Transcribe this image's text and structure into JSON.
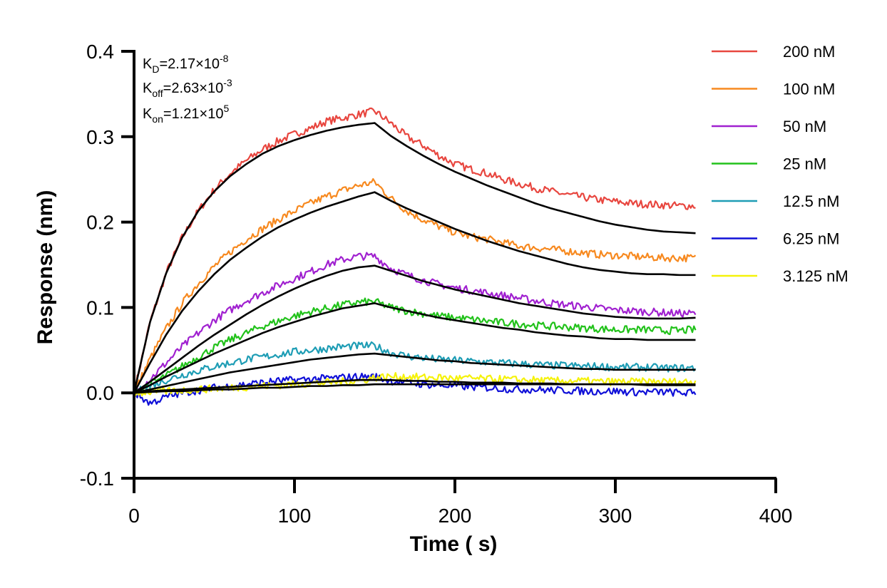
{
  "chart_data": {
    "type": "line",
    "xlabel": "Time ( s)",
    "ylabel": "Response (nm)",
    "xlim": [
      0,
      400
    ],
    "ylim": [
      -0.1,
      0.4
    ],
    "xticks": [
      0,
      100,
      200,
      300,
      400
    ],
    "yticks": [
      -0.1,
      0.0,
      0.1,
      0.2,
      0.3,
      0.4
    ],
    "xtick_labels": [
      "0",
      "100",
      "200",
      "300",
      "400"
    ],
    "ytick_labels": [
      "-0.1",
      "0.0",
      "0.1",
      "0.2",
      "0.3",
      "0.4"
    ],
    "grid": false,
    "legend_position": "top-right",
    "annotations": {
      "kd": {
        "base": "K",
        "sub": "D",
        "text": "=2.17×10",
        "sup": "-8"
      },
      "koff": {
        "base": "K",
        "sub": "off",
        "text": "=2.63×10",
        "sup": "-3"
      },
      "kon": {
        "base": "K",
        "sub": "on",
        "text": "=1.21×10",
        "sup": "5"
      }
    },
    "association_end": 150,
    "x": [
      0,
      10,
      20,
      30,
      40,
      50,
      60,
      70,
      80,
      90,
      100,
      110,
      120,
      130,
      140,
      150,
      160,
      170,
      180,
      190,
      200,
      210,
      220,
      230,
      240,
      250,
      260,
      270,
      280,
      290,
      300,
      310,
      320,
      330,
      340,
      350
    ],
    "series": [
      {
        "name": "200 nM",
        "color": "#E8463F",
        "values": [
          0.0,
          0.083,
          0.14,
          0.182,
          0.213,
          0.238,
          0.257,
          0.272,
          0.285,
          0.295,
          0.303,
          0.31,
          0.318,
          0.322,
          0.326,
          0.33,
          0.316,
          0.3,
          0.29,
          0.278,
          0.268,
          0.262,
          0.257,
          0.25,
          0.245,
          0.24,
          0.236,
          0.232,
          0.229,
          0.226,
          0.224,
          0.222,
          0.221,
          0.22,
          0.219,
          0.219
        ],
        "fit": [
          0.0,
          0.083,
          0.14,
          0.182,
          0.213,
          0.236,
          0.254,
          0.268,
          0.28,
          0.289,
          0.296,
          0.302,
          0.307,
          0.311,
          0.314,
          0.316,
          0.301,
          0.289,
          0.278,
          0.268,
          0.259,
          0.251,
          0.243,
          0.236,
          0.229,
          0.222,
          0.216,
          0.211,
          0.206,
          0.201,
          0.197,
          0.194,
          0.191,
          0.189,
          0.188,
          0.187
        ]
      },
      {
        "name": "100 nM",
        "color": "#F7891F",
        "values": [
          0.0,
          0.04,
          0.075,
          0.105,
          0.128,
          0.148,
          0.165,
          0.18,
          0.192,
          0.203,
          0.213,
          0.222,
          0.23,
          0.237,
          0.243,
          0.247,
          0.228,
          0.213,
          0.203,
          0.195,
          0.188,
          0.183,
          0.18,
          0.176,
          0.172,
          0.17,
          0.168,
          0.166,
          0.164,
          0.162,
          0.161,
          0.16,
          0.159,
          0.158,
          0.158,
          0.158
        ],
        "fit": [
          0.0,
          0.035,
          0.068,
          0.096,
          0.119,
          0.139,
          0.156,
          0.17,
          0.183,
          0.194,
          0.203,
          0.211,
          0.218,
          0.224,
          0.23,
          0.235,
          0.225,
          0.216,
          0.208,
          0.2,
          0.192,
          0.185,
          0.178,
          0.172,
          0.166,
          0.161,
          0.156,
          0.151,
          0.147,
          0.144,
          0.142,
          0.14,
          0.139,
          0.139,
          0.138,
          0.138
        ]
      },
      {
        "name": "50 nM",
        "color": "#A020D0",
        "values": [
          0.0,
          0.016,
          0.035,
          0.054,
          0.07,
          0.085,
          0.097,
          0.108,
          0.117,
          0.126,
          0.134,
          0.142,
          0.15,
          0.156,
          0.16,
          0.16,
          0.146,
          0.138,
          0.132,
          0.127,
          0.123,
          0.12,
          0.117,
          0.114,
          0.111,
          0.108,
          0.105,
          0.103,
          0.101,
          0.099,
          0.097,
          0.096,
          0.095,
          0.094,
          0.093,
          0.093
        ],
        "fit": [
          0.0,
          0.013,
          0.027,
          0.041,
          0.055,
          0.068,
          0.08,
          0.092,
          0.103,
          0.113,
          0.122,
          0.13,
          0.137,
          0.143,
          0.147,
          0.149,
          0.143,
          0.137,
          0.131,
          0.126,
          0.121,
          0.117,
          0.113,
          0.109,
          0.105,
          0.102,
          0.099,
          0.096,
          0.093,
          0.091,
          0.089,
          0.088,
          0.087,
          0.087,
          0.087,
          0.088
        ]
      },
      {
        "name": "25 nM",
        "color": "#22C21B",
        "values": [
          0.0,
          0.01,
          0.02,
          0.031,
          0.042,
          0.053,
          0.062,
          0.07,
          0.078,
          0.084,
          0.09,
          0.095,
          0.099,
          0.103,
          0.106,
          0.107,
          0.1,
          0.096,
          0.093,
          0.09,
          0.088,
          0.086,
          0.084,
          0.082,
          0.081,
          0.079,
          0.078,
          0.077,
          0.076,
          0.075,
          0.074,
          0.074,
          0.074,
          0.073,
          0.073,
          0.074
        ],
        "fit": [
          0.0,
          0.009,
          0.019,
          0.028,
          0.037,
          0.046,
          0.054,
          0.062,
          0.07,
          0.077,
          0.083,
          0.089,
          0.094,
          0.099,
          0.102,
          0.105,
          0.1,
          0.096,
          0.092,
          0.088,
          0.085,
          0.082,
          0.079,
          0.076,
          0.074,
          0.071,
          0.069,
          0.067,
          0.066,
          0.064,
          0.063,
          0.063,
          0.062,
          0.062,
          0.062,
          0.062
        ]
      },
      {
        "name": "12.5 nM",
        "color": "#1E9DB5",
        "values": [
          0.0,
          0.008,
          0.015,
          0.021,
          0.026,
          0.031,
          0.035,
          0.039,
          0.042,
          0.045,
          0.048,
          0.05,
          0.052,
          0.054,
          0.055,
          0.055,
          0.047,
          0.043,
          0.041,
          0.039,
          0.038,
          0.037,
          0.036,
          0.035,
          0.034,
          0.033,
          0.032,
          0.032,
          0.031,
          0.031,
          0.03,
          0.03,
          0.03,
          0.029,
          0.029,
          0.029
        ],
        "fit": [
          0.0,
          0.004,
          0.008,
          0.012,
          0.016,
          0.02,
          0.024,
          0.027,
          0.03,
          0.033,
          0.036,
          0.039,
          0.041,
          0.043,
          0.045,
          0.046,
          0.044,
          0.042,
          0.04,
          0.038,
          0.037,
          0.035,
          0.034,
          0.033,
          0.032,
          0.031,
          0.03,
          0.029,
          0.028,
          0.028,
          0.027,
          0.027,
          0.027,
          0.027,
          0.027,
          0.027
        ]
      },
      {
        "name": "6.25 nM",
        "color": "#1010D8",
        "values": [
          0.0,
          -0.012,
          -0.005,
          0.0,
          0.003,
          0.006,
          0.008,
          0.01,
          0.012,
          0.014,
          0.015,
          0.016,
          0.017,
          0.018,
          0.019,
          0.019,
          0.014,
          0.012,
          0.01,
          0.009,
          0.008,
          0.007,
          0.006,
          0.005,
          0.004,
          0.004,
          0.003,
          0.003,
          0.002,
          0.002,
          0.002,
          0.001,
          0.001,
          0.001,
          0.0,
          0.0
        ],
        "fit": [
          0.0,
          0.002,
          0.003,
          0.004,
          0.005,
          0.006,
          0.007,
          0.008,
          0.009,
          0.01,
          0.011,
          0.012,
          0.013,
          0.014,
          0.015,
          0.015,
          0.015,
          0.014,
          0.014,
          0.013,
          0.013,
          0.012,
          0.012,
          0.012,
          0.011,
          0.011,
          0.011,
          0.01,
          0.01,
          0.01,
          0.01,
          0.01,
          0.009,
          0.009,
          0.009,
          0.009
        ]
      },
      {
        "name": "3.125 nM",
        "color": "#F5F20A",
        "values": [
          0.0,
          0.001,
          0.002,
          0.003,
          0.004,
          0.005,
          0.006,
          0.007,
          0.008,
          0.009,
          0.01,
          0.011,
          0.012,
          0.013,
          0.014,
          0.018,
          0.019,
          0.019,
          0.018,
          0.018,
          0.017,
          0.017,
          0.016,
          0.016,
          0.015,
          0.015,
          0.014,
          0.014,
          0.014,
          0.013,
          0.013,
          0.013,
          0.013,
          0.013,
          0.013,
          0.013
        ],
        "fit": [
          0.0,
          0.001,
          0.002,
          0.002,
          0.003,
          0.004,
          0.004,
          0.005,
          0.006,
          0.006,
          0.007,
          0.008,
          0.008,
          0.009,
          0.009,
          0.01,
          0.01,
          0.01,
          0.01,
          0.01,
          0.01,
          0.01,
          0.01,
          0.01,
          0.01,
          0.01,
          0.01,
          0.01,
          0.01,
          0.01,
          0.01,
          0.01,
          0.01,
          0.01,
          0.01,
          0.01
        ]
      }
    ]
  }
}
